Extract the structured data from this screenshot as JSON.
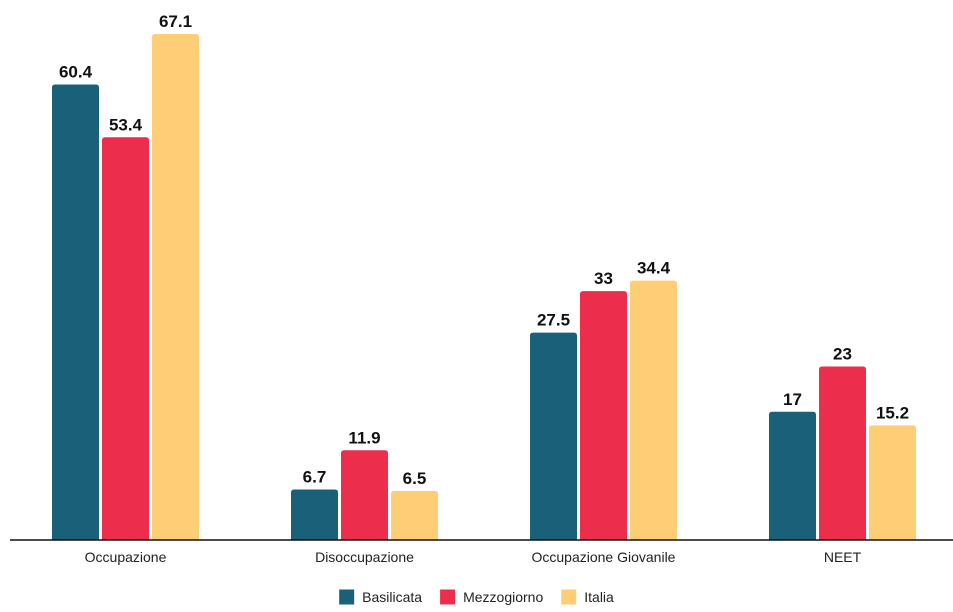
{
  "chart_data": {
    "type": "bar",
    "categories": [
      "Occupazione",
      "Disoccupazione",
      "Occupazione Giovanile",
      "NEET"
    ],
    "series": [
      {
        "name": "Basilicata",
        "color": "#1a6079",
        "values": [
          60.4,
          6.7,
          27.5,
          17
        ]
      },
      {
        "name": "Mezzogiorno",
        "color": "#ec2d4b",
        "values": [
          53.4,
          11.9,
          33,
          23
        ]
      },
      {
        "name": "Italia",
        "color": "#fdce75",
        "values": [
          67.1,
          6.5,
          34.4,
          15.2
        ]
      }
    ],
    "value_labels": [
      [
        "60.4",
        "6.7",
        "27.5",
        "17"
      ],
      [
        "53.4",
        "11.9",
        "33",
        "23"
      ],
      [
        "67.1",
        "6.5",
        "34.4",
        "15.2"
      ]
    ],
    "ylim": [
      0,
      67.1
    ],
    "grid": false,
    "legend_position": "bottom-center"
  }
}
